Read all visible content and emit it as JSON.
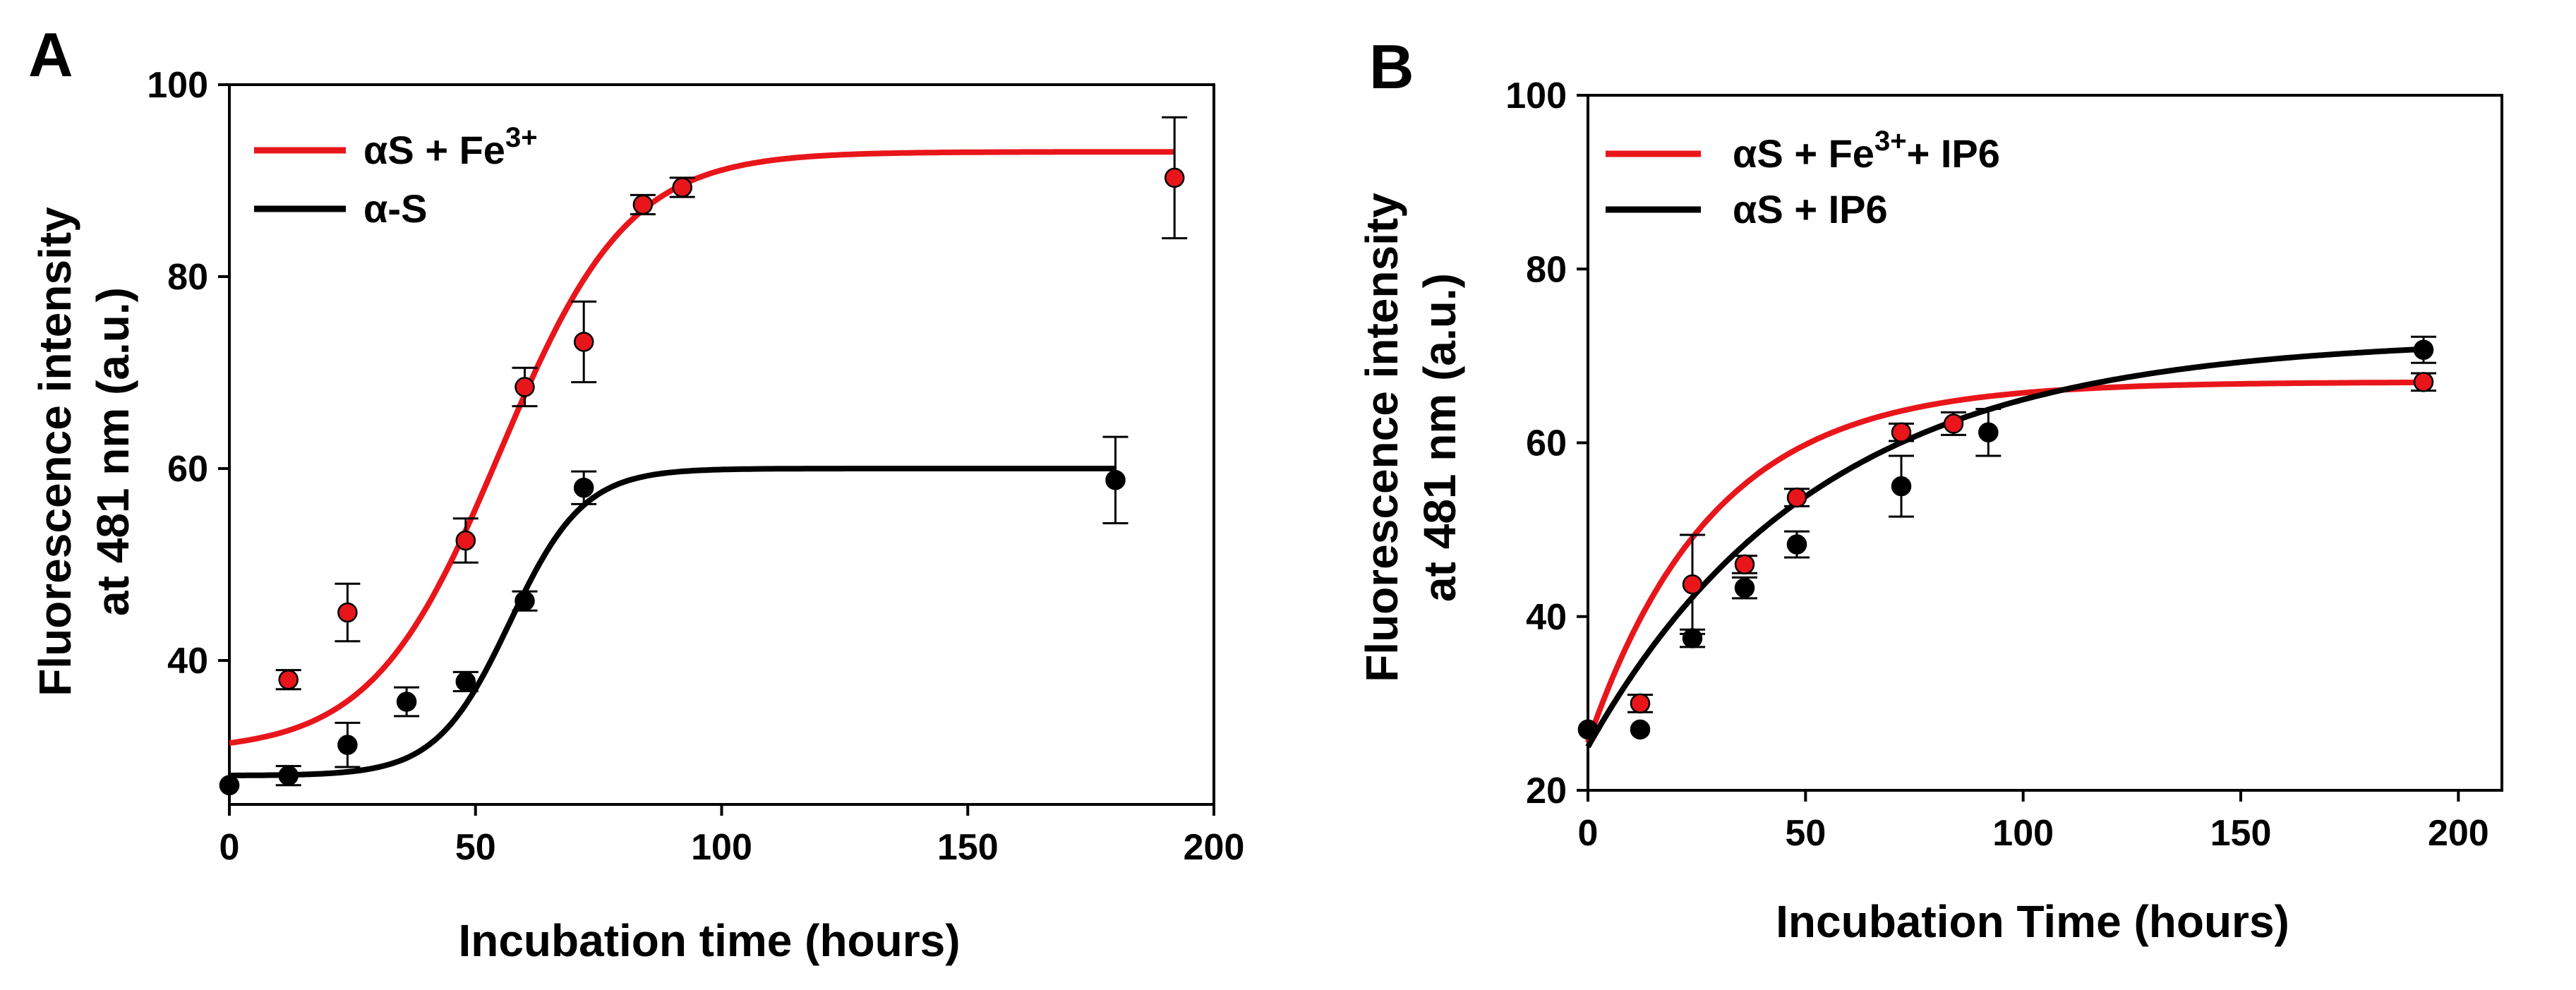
{
  "chart_data": [
    {
      "type": "scatter",
      "panel_label": "A",
      "xlabel": "Incubation time (hours)",
      "ylabel_line1": "Fluorescence intensity",
      "ylabel_line2": "at 481 nm (a.u.)",
      "xlim": [
        0,
        200
      ],
      "ylim": [
        25,
        100
      ],
      "xticks": [
        0,
        50,
        100,
        150,
        200
      ],
      "yticks": [
        40,
        60,
        80,
        100
      ],
      "grid": false,
      "legend_position": "top-left",
      "series": [
        {
          "name": "αS + Fe",
          "name_sup": "3+",
          "color": "#e8161b",
          "fit": {
            "bottom": 30.5,
            "top": 93,
            "x50": 55,
            "slope": 13
          },
          "points": [
            {
              "x": 0,
              "y": 27,
              "err": 0
            },
            {
              "x": 12,
              "y": 38,
              "err": 1
            },
            {
              "x": 24,
              "y": 45,
              "err": 3
            },
            {
              "x": 48,
              "y": 52.5,
              "err": 2.3
            },
            {
              "x": 60,
              "y": 68.5,
              "err": 2
            },
            {
              "x": 72,
              "y": 73.2,
              "err": 4.2
            },
            {
              "x": 84,
              "y": 87.5,
              "err": 1
            },
            {
              "x": 92,
              "y": 89.3,
              "err": 1
            },
            {
              "x": 192,
              "y": 90.3,
              "err": 6.3
            }
          ]
        },
        {
          "name": "α-S",
          "name_sup": "",
          "color": "#000000",
          "fit": {
            "bottom": 28,
            "top": 60,
            "x50": 57,
            "slope": 7.5
          },
          "points": [
            {
              "x": 0,
              "y": 27,
              "err": 0
            },
            {
              "x": 12,
              "y": 28,
              "err": 1
            },
            {
              "x": 24,
              "y": 31.2,
              "err": 2.3
            },
            {
              "x": 36,
              "y": 35.7,
              "err": 1.5
            },
            {
              "x": 48,
              "y": 37.8,
              "err": 1
            },
            {
              "x": 60,
              "y": 46.2,
              "err": 1
            },
            {
              "x": 72,
              "y": 58,
              "err": 1.7
            },
            {
              "x": 180,
              "y": 58.8,
              "err": 4.5
            }
          ]
        }
      ]
    },
    {
      "type": "scatter",
      "panel_label": "B",
      "xlabel": "Incubation Time (hours)",
      "ylabel_line1": "Fluorescence intensity",
      "ylabel_line2": "at 481 nm (a.u.)",
      "xlim": [
        0,
        210
      ],
      "ylim": [
        20,
        100
      ],
      "xticks": [
        0,
        50,
        100,
        150,
        200
      ],
      "yticks": [
        20,
        40,
        60,
        80,
        100
      ],
      "grid": false,
      "legend_position": "top-left",
      "series": [
        {
          "name": "αS + Fe",
          "name_sup": "3+",
          "name_suffix": "+ IP6",
          "color": "#e8161b",
          "fit": {
            "y0": 25.5,
            "plateau": 67,
            "k": 0.035
          },
          "points": [
            {
              "x": 0,
              "y": 27,
              "err": 0
            },
            {
              "x": 12,
              "y": 30,
              "err": 1
            },
            {
              "x": 24,
              "y": 43.7,
              "err": 5.7
            },
            {
              "x": 36,
              "y": 46,
              "err": 1
            },
            {
              "x": 48,
              "y": 53.7,
              "err": 1
            },
            {
              "x": 72,
              "y": 61.2,
              "err": 1
            },
            {
              "x": 84,
              "y": 62.2,
              "err": 1.3
            },
            {
              "x": 192,
              "y": 67,
              "err": 1
            }
          ]
        },
        {
          "name": "αS + IP6",
          "name_sup": "",
          "name_suffix": "",
          "color": "#000000",
          "fit": {
            "y0": 25,
            "plateau": 72,
            "k": 0.019
          },
          "points": [
            {
              "x": 0,
              "y": 27,
              "err": 0
            },
            {
              "x": 12,
              "y": 27,
              "err": 0
            },
            {
              "x": 24,
              "y": 37.5,
              "err": 1
            },
            {
              "x": 36,
              "y": 43.3,
              "err": 1.2
            },
            {
              "x": 48,
              "y": 48.3,
              "err": 1.5
            },
            {
              "x": 72,
              "y": 55,
              "err": 3.5
            },
            {
              "x": 92,
              "y": 61.2,
              "err": 2.7
            },
            {
              "x": 192,
              "y": 70.7,
              "err": 1.5
            }
          ]
        }
      ]
    }
  ]
}
